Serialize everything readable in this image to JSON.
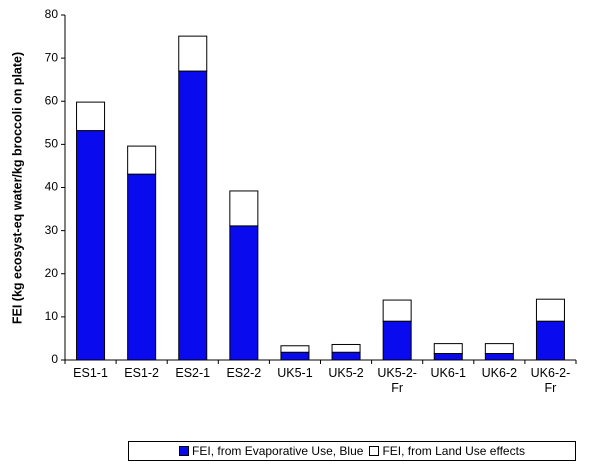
{
  "chart_data": {
    "type": "stacked_bar",
    "y_label": "FEI (kg ecosyst-eq water/kg broccoli on plate)",
    "categories": [
      "ES1-1",
      "ES1-2",
      "ES2-1",
      "ES2-2",
      "UK5-1",
      "UK5-2",
      "UK5-2-Fr",
      "UK6-1",
      "UK6-2",
      "UK6-2-Fr"
    ],
    "series": [
      {
        "name": "FEI, from Evaporative Use, Blue",
        "color": "#0a0aee",
        "values": [
          53.2,
          43.1,
          67.0,
          31.1,
          1.8,
          1.8,
          9.0,
          1.5,
          1.5,
          9.0
        ]
      },
      {
        "name": "FEI, from Land Use effects",
        "color": "#ffffff",
        "values": [
          6.6,
          6.5,
          8.1,
          8.1,
          1.5,
          1.8,
          4.9,
          2.3,
          2.3,
          5.1
        ]
      }
    ],
    "ylim": [
      0,
      80
    ],
    "yticks": [
      0,
      10,
      20,
      30,
      40,
      50,
      60,
      70,
      80
    ],
    "grid": false,
    "legend": "bottom"
  }
}
